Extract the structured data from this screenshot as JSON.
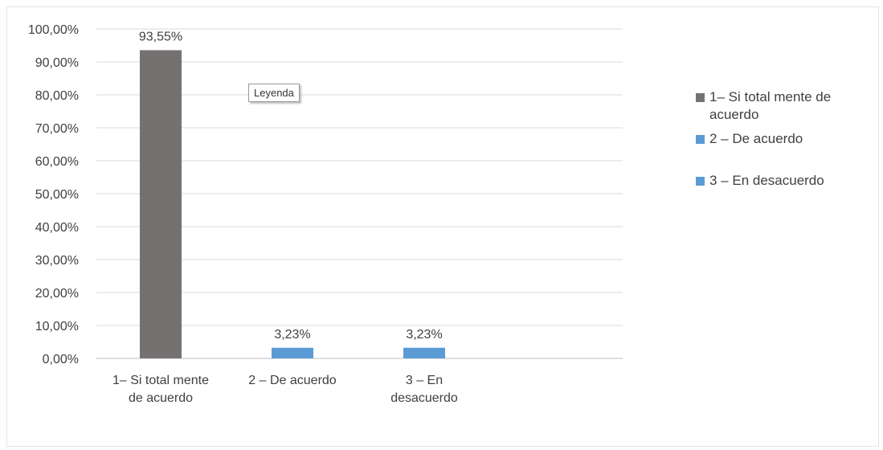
{
  "chart_data": {
    "type": "bar",
    "categories": [
      "1– Si total mente de acuerdo",
      "2 – De acuerdo",
      "3 – En desacuerdo"
    ],
    "values": [
      93.55,
      3.23,
      3.23
    ],
    "data_labels": [
      "93,55%",
      "3,23%",
      "3,23%"
    ],
    "colors": [
      "#767171",
      "#5b9bd5",
      "#5b9bd5"
    ],
    "ylim": [
      0,
      100
    ],
    "yticks": [
      "0,00%",
      "10,00%",
      "20,00%",
      "30,00%",
      "40,00%",
      "50,00%",
      "60,00%",
      "70,00%",
      "80,00%",
      "90,00%",
      "100,00%"
    ],
    "grid": true,
    "legend_position": "right",
    "legend": [
      {
        "label": "1– Si total mente de acuerdo",
        "color": "#767171"
      },
      {
        "label": "2 – De acuerdo",
        "color": "#5b9bd5"
      },
      {
        "label": "3 – En desacuerdo",
        "color": "#5b9bd5"
      }
    ],
    "x_tick_lines": [
      [
        "1– Si total mente",
        "de acuerdo"
      ],
      [
        "2 – De acuerdo"
      ],
      [
        "3 – En",
        "desacuerdo"
      ]
    ]
  },
  "tooltip": "Leyenda"
}
